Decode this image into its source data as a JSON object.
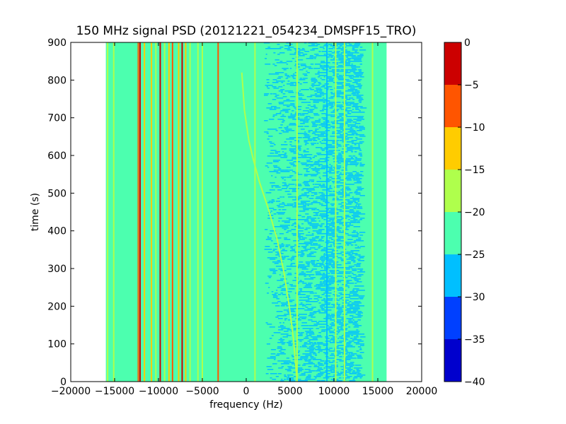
{
  "chart_data": {
    "type": "heatmap",
    "title": "150 MHz signal PSD (20121221_054234_DMSPF15_TRO)",
    "xlabel": "frequency (Hz)",
    "ylabel": "time (s)",
    "xlim": [
      -20000,
      20000
    ],
    "ylim": [
      0,
      900
    ],
    "xticks": [
      -20000,
      -15000,
      -10000,
      -5000,
      0,
      5000,
      10000,
      15000,
      20000
    ],
    "xtick_labels": [
      "−20000",
      "−15000",
      "−10000",
      "−5000",
      "0",
      "5000",
      "10000",
      "15000",
      "20000"
    ],
    "yticks": [
      0,
      100,
      200,
      300,
      400,
      500,
      600,
      700,
      800,
      900
    ],
    "ytick_labels": [
      "0",
      "100",
      "200",
      "300",
      "400",
      "500",
      "600",
      "700",
      "800",
      "900"
    ],
    "data_extent": {
      "x": [
        -16000,
        16000
      ],
      "y": [
        0,
        900
      ]
    },
    "background_level": -22.5,
    "colorbar": {
      "range": [
        -40,
        0
      ],
      "tick_values": [
        0,
        -5,
        -10,
        -15,
        -20,
        -25,
        -30,
        -35,
        -40
      ],
      "tick_labels": [
        "0",
        "−5",
        "−10",
        "−15",
        "−20",
        "−25",
        "−30",
        "−35",
        "−40"
      ],
      "levels": [
        {
          "from": -40,
          "to": -35,
          "color": "#0000cd"
        },
        {
          "from": -35,
          "to": -30,
          "color": "#0040ff"
        },
        {
          "from": -30,
          "to": -25,
          "color": "#00bfff"
        },
        {
          "from": -25,
          "to": -20,
          "color": "#4cffaf"
        },
        {
          "from": -20,
          "to": -15,
          "color": "#afff4c"
        },
        {
          "from": -15,
          "to": -10,
          "color": "#ffcc00"
        },
        {
          "from": -10,
          "to": -5,
          "color": "#ff5500"
        },
        {
          "from": -5,
          "to": 0,
          "color": "#cc0000"
        }
      ]
    },
    "noise_region": {
      "x_from": 2000,
      "x_to": 13000,
      "level": -27.5
    },
    "signal_lines": [
      {
        "frequency": -15800,
        "level": -17.5
      },
      {
        "frequency": -15100,
        "level": -17.5
      },
      {
        "frequency": -12300,
        "level": -7.5
      },
      {
        "frequency": -12100,
        "level": -2.5
      },
      {
        "frequency": -11600,
        "level": -12.5
      },
      {
        "frequency": -10800,
        "level": -12.5
      },
      {
        "frequency": -10300,
        "level": -17.5
      },
      {
        "frequency": -9800,
        "level": -2.5
      },
      {
        "frequency": -9300,
        "level": -17.5
      },
      {
        "frequency": -8800,
        "level": -12.5
      },
      {
        "frequency": -8400,
        "level": -7.5
      },
      {
        "frequency": -7700,
        "level": -12.5
      },
      {
        "frequency": -7300,
        "level": -2.5
      },
      {
        "frequency": -6900,
        "level": -12.5
      },
      {
        "frequency": -6400,
        "level": -17.5
      },
      {
        "frequency": -5500,
        "level": -17.5
      },
      {
        "frequency": -5000,
        "level": -17.5
      },
      {
        "frequency": -3200,
        "level": -7.5
      },
      {
        "frequency": 1000,
        "level": -17.5
      },
      {
        "frequency": 5800,
        "level": -17.5
      },
      {
        "frequency": 9200,
        "level": -27.5
      },
      {
        "frequency": 10200,
        "level": -17.5
      },
      {
        "frequency": 11200,
        "level": -17.5
      },
      {
        "frequency": 14400,
        "level": -17.5
      }
    ],
    "drifting_signal": {
      "level": -17.5,
      "points": [
        {
          "frequency": -500,
          "time": 820
        },
        {
          "frequency": -200,
          "time": 720
        },
        {
          "frequency": 300,
          "time": 640
        },
        {
          "frequency": 800,
          "time": 590
        },
        {
          "frequency": 1500,
          "time": 530
        },
        {
          "frequency": 2500,
          "time": 460
        },
        {
          "frequency": 3500,
          "time": 380
        },
        {
          "frequency": 4300,
          "time": 290
        },
        {
          "frequency": 4900,
          "time": 200
        },
        {
          "frequency": 5400,
          "time": 110
        },
        {
          "frequency": 5800,
          "time": 0
        }
      ]
    }
  }
}
